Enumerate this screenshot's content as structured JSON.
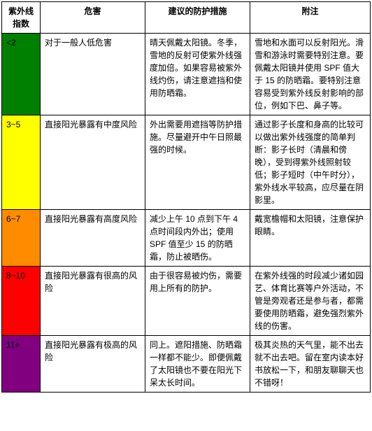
{
  "headers": {
    "index": "紫外线指数",
    "hazard": "危害",
    "protection": "建议的防护措施",
    "note": "附注"
  },
  "rows": [
    {
      "index": "<2",
      "color": "#008000",
      "hazard": "对于一般人低危害",
      "protection": "晴天佩戴太阳镜。冬季，雪地的反射可使紫外线强度加倍。如果容易被紫外线灼伤，请注意遮挡和使用防晒霜。",
      "note": "雪地和水面可以反射阳光。滑雪和游泳时需要特别注意。要佩戴太阳镜并使用 SPF 值大于 15 的防晒霜。要特别注意容易受到紫外线反射影响的部位，例如下巴、鼻子等。"
    },
    {
      "index": "3~5",
      "color": "#ffff00",
      "hazard": "直接阳光暴露有中度风险",
      "protection": "外出需要用遮挡等防护措施。尽量避开中午日照最强的时候。",
      "note": "通过影子长度和身高的比较可以做出紫外线强度的简单判断：影子长时（清晨和傍晚），受到得紫外线照射较低；影子短时（中午时分），紫外线水平较高，应尽量在阴影里。"
    },
    {
      "index": "6~7",
      "color": "#ff8c00",
      "hazard": "直接阳光暴露有高度风险",
      "protection": "减少上午 10 点到下午 4 点时间段内外出；使用 SPF 值至少 15 的防晒霜，防止被晒伤。",
      "note": "戴宽檐帽和太阳镜，注意保护眼睛。"
    },
    {
      "index": "8~10",
      "color": "#ff0000",
      "hazard": "直接阳光暴露有很高的风险",
      "protection": "由于很容易被灼伤，需要用上所有的防护。",
      "note": "在紫外线强的时段减少诸如园艺、体育比赛等户外活动，不管是旁观者还是参与者，都需要使用防晒霜，避免强烈紫外线的伤害。"
    },
    {
      "index": "11+",
      "color": "#800080",
      "hazard": "直接阳光暴露有极高的风险",
      "protection": "同上。遮阳措施、防晒霜一样都不能少。即便佩戴了太阳镜也不要在阳光下呆太长时间。",
      "note": "极其炎热的天气里，能不出去就不出去吧。留在室内读本好书放松一下，和朋友聊聊天也不错呀！"
    }
  ]
}
